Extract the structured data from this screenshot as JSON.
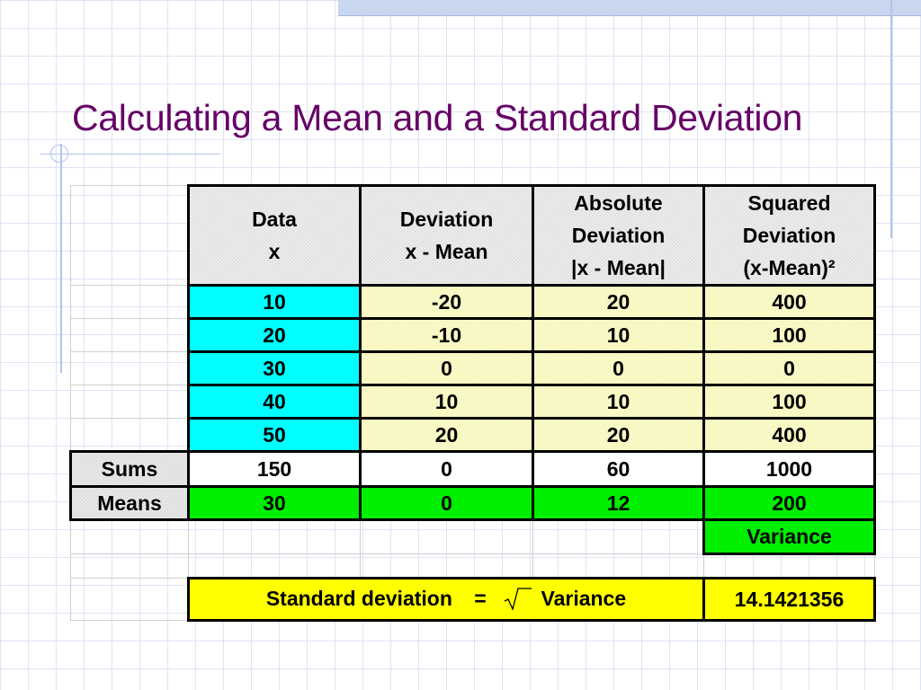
{
  "slide": {
    "title": "Calculating a Mean and a Standard Deviation"
  },
  "table": {
    "headers": [
      [
        "Data",
        "x"
      ],
      [
        "Deviation",
        "x - Mean"
      ],
      [
        "Absolute",
        "Deviation",
        "|x - Mean|"
      ],
      [
        "Squared",
        "Deviation",
        "(x-Mean)²"
      ]
    ],
    "rows": [
      [
        "10",
        "-20",
        "20",
        "400"
      ],
      [
        "20",
        "-10",
        "10",
        "100"
      ],
      [
        "30",
        "0",
        "0",
        "0"
      ],
      [
        "40",
        "10",
        "10",
        "100"
      ],
      [
        "50",
        "20",
        "20",
        "400"
      ]
    ],
    "sums": {
      "label": "Sums",
      "values": [
        "150",
        "0",
        "60",
        "1000"
      ]
    },
    "means": {
      "label": "Means",
      "values": [
        "30",
        "0",
        "12",
        "200"
      ]
    },
    "variance_label": "Variance",
    "std_dev": {
      "label": "Standard deviation",
      "equals": "=",
      "variance_word": "Variance",
      "value": "14.1421356"
    }
  },
  "colors": {
    "title": "#660066",
    "data_column": "#00ffff",
    "deviation_cells": "#ffffd2",
    "means_row": "#00ee00",
    "std_dev_row": "#ffff00"
  }
}
